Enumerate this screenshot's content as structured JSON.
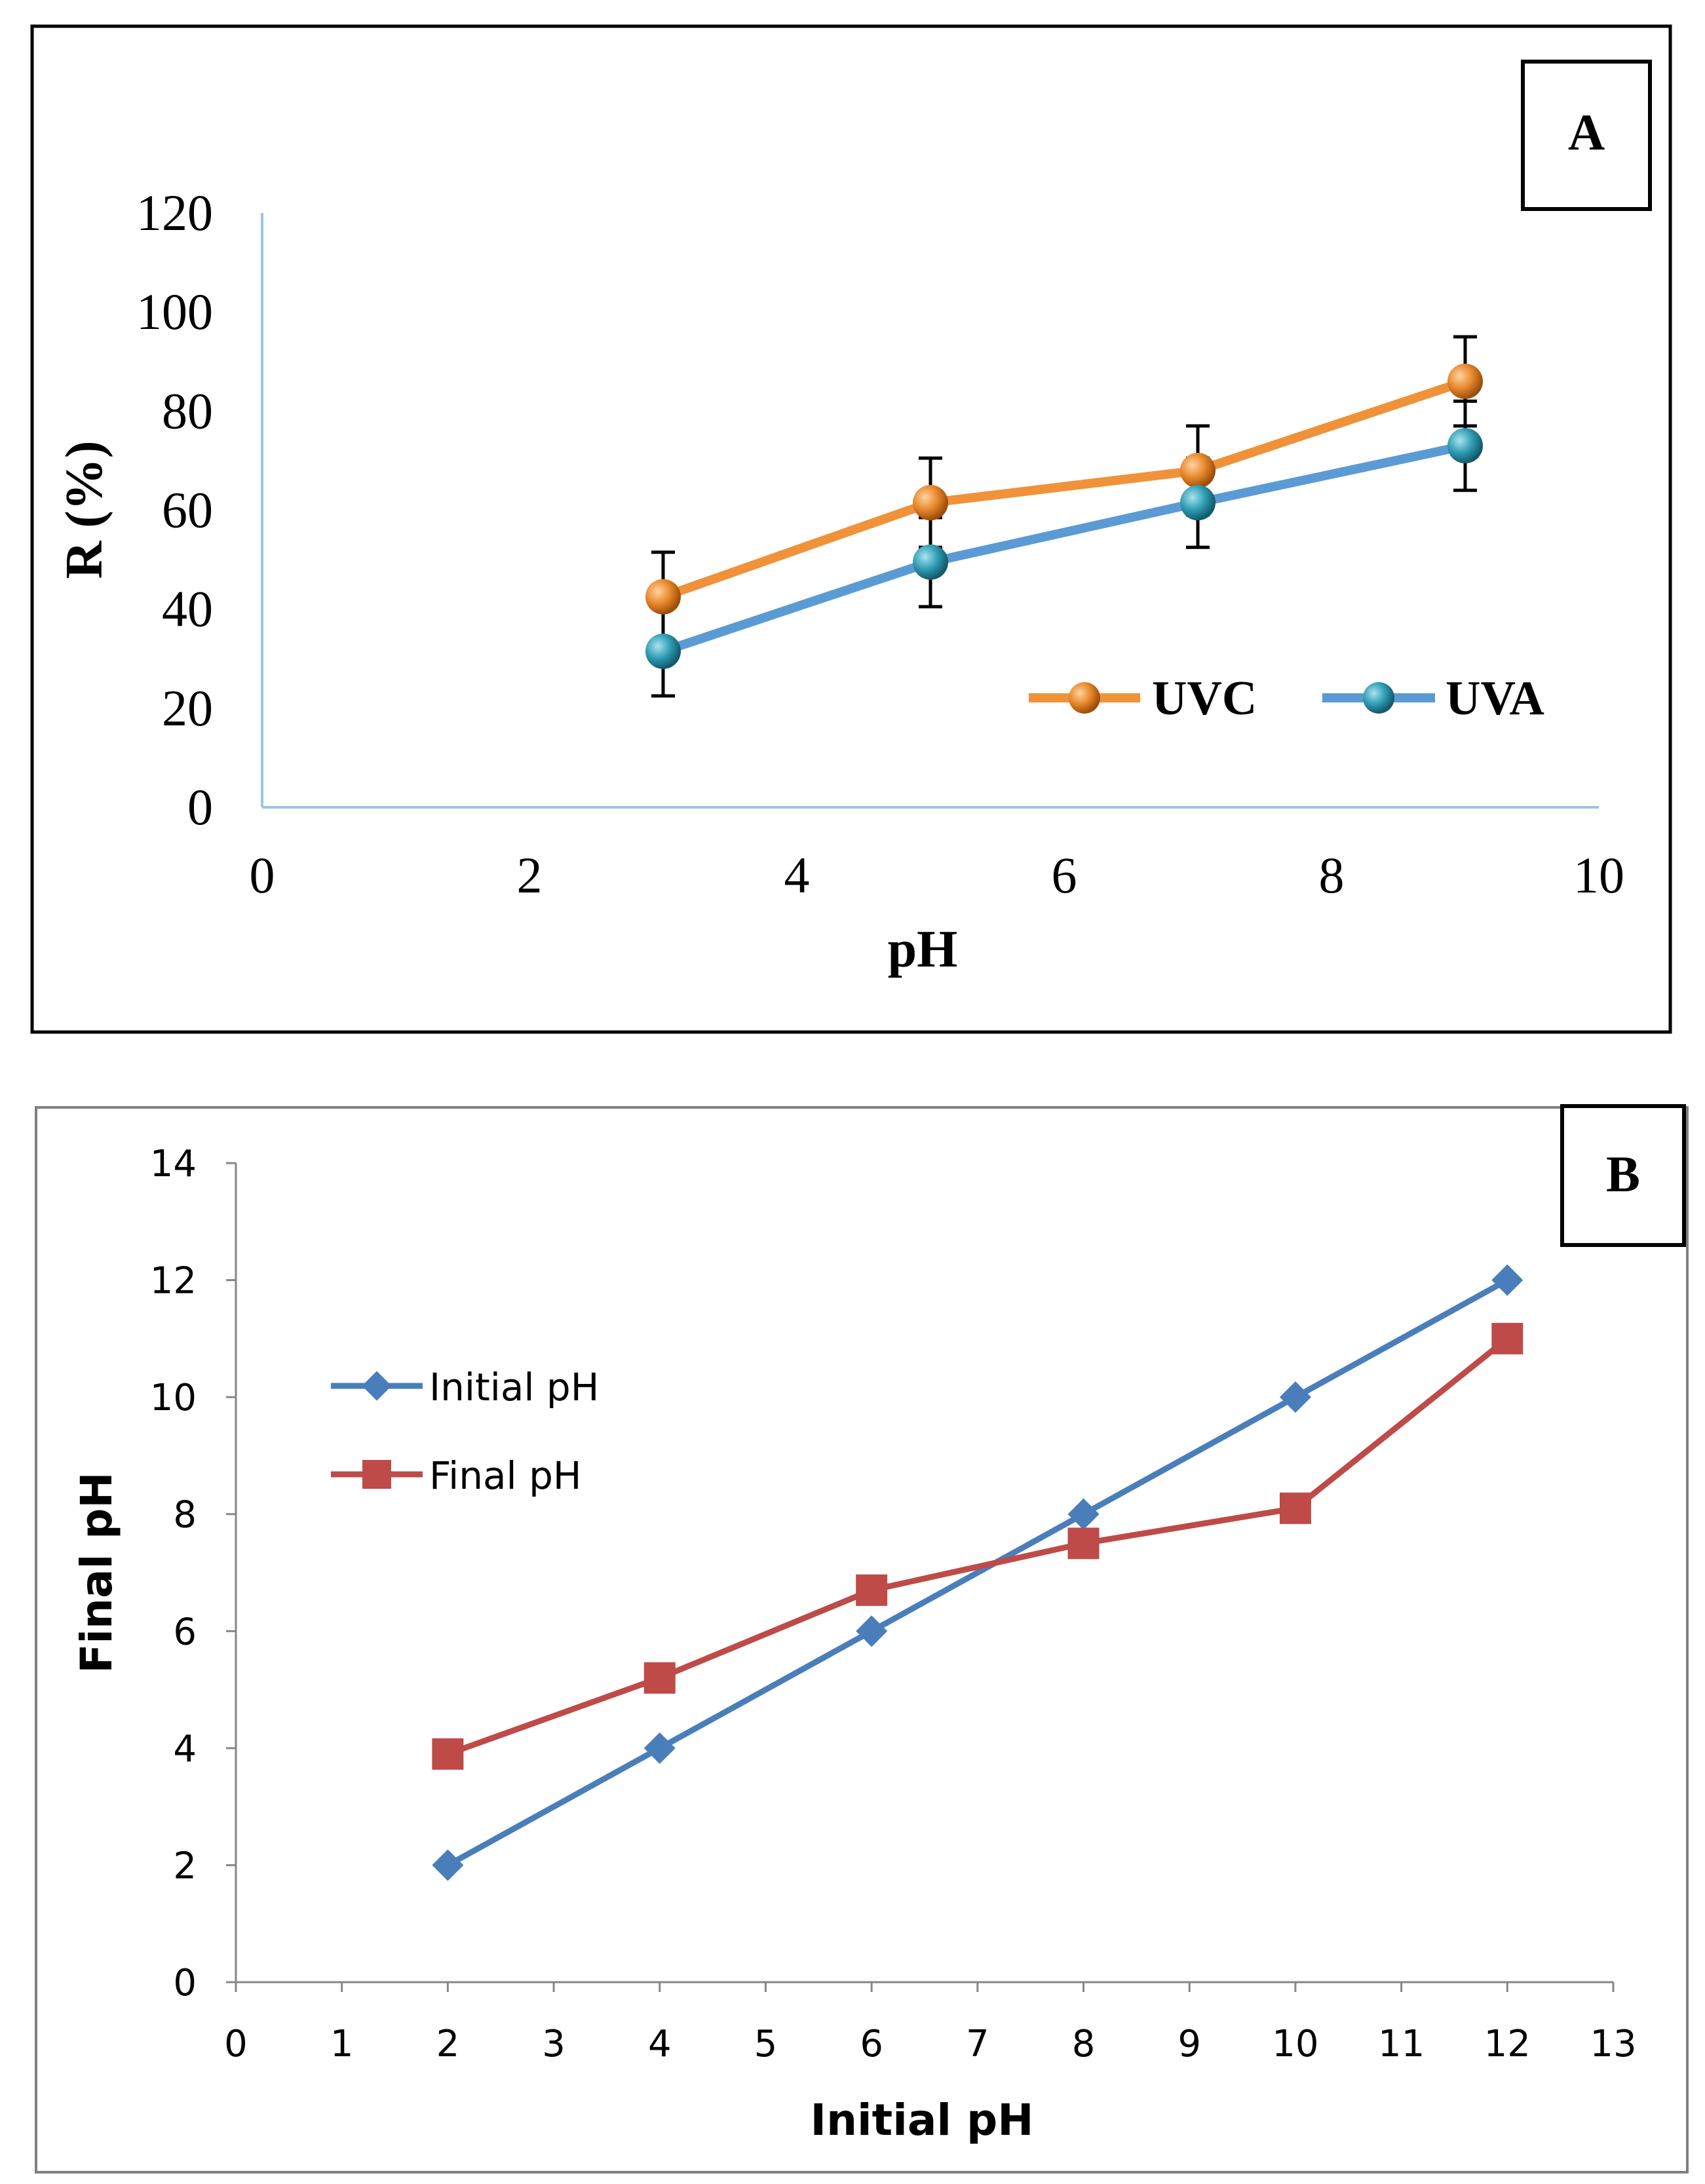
{
  "chart_data": [
    {
      "type": "line",
      "panel_label": "A",
      "title": "",
      "xlabel": "pH",
      "ylabel": "R (%)",
      "xlim": [
        0,
        10
      ],
      "ylim": [
        0,
        120
      ],
      "xticks": [
        "0",
        "2",
        "4",
        "6",
        "8",
        "10"
      ],
      "yticks": [
        "0",
        "20",
        "40",
        "60",
        "80",
        "100",
        "120"
      ],
      "legend_position": "lower-right",
      "series": [
        {
          "name": "UVC",
          "color": "#f0923a",
          "marker_color": "#e8872b",
          "x": [
            3,
            5,
            7,
            9
          ],
          "y": [
            42.5,
            61.5,
            68,
            86
          ],
          "error": [
            9,
            9,
            9,
            9
          ]
        },
        {
          "name": "UVA",
          "color": "#5b9bd5",
          "marker_color": "#2f9cb3",
          "x": [
            3,
            5,
            7,
            9
          ],
          "y": [
            31.5,
            49.5,
            61.5,
            73
          ],
          "error": [
            9,
            9,
            9,
            9
          ]
        }
      ]
    },
    {
      "type": "line",
      "panel_label": "B",
      "title": "",
      "xlabel": "Initial pH",
      "ylabel": "Final pH",
      "xlim": [
        0,
        13
      ],
      "ylim": [
        0,
        14
      ],
      "xticks": [
        "0",
        "1",
        "2",
        "3",
        "4",
        "5",
        "6",
        "7",
        "8",
        "9",
        "10",
        "11",
        "12",
        "13"
      ],
      "yticks": [
        "0",
        "2",
        "4",
        "6",
        "8",
        "10",
        "12",
        "14"
      ],
      "legend_position": "upper-left",
      "series": [
        {
          "name": "Initial pH",
          "color": "#4a7ebb",
          "marker": "diamond",
          "x": [
            2,
            4,
            6,
            8,
            10,
            12
          ],
          "y": [
            2,
            4,
            6,
            8,
            10,
            12
          ]
        },
        {
          "name": "Final pH",
          "color": "#be4b48",
          "marker": "square",
          "x": [
            2,
            4,
            6,
            8,
            10,
            12
          ],
          "y": [
            3.9,
            5.2,
            6.7,
            7.5,
            8.1,
            11
          ]
        }
      ]
    }
  ]
}
